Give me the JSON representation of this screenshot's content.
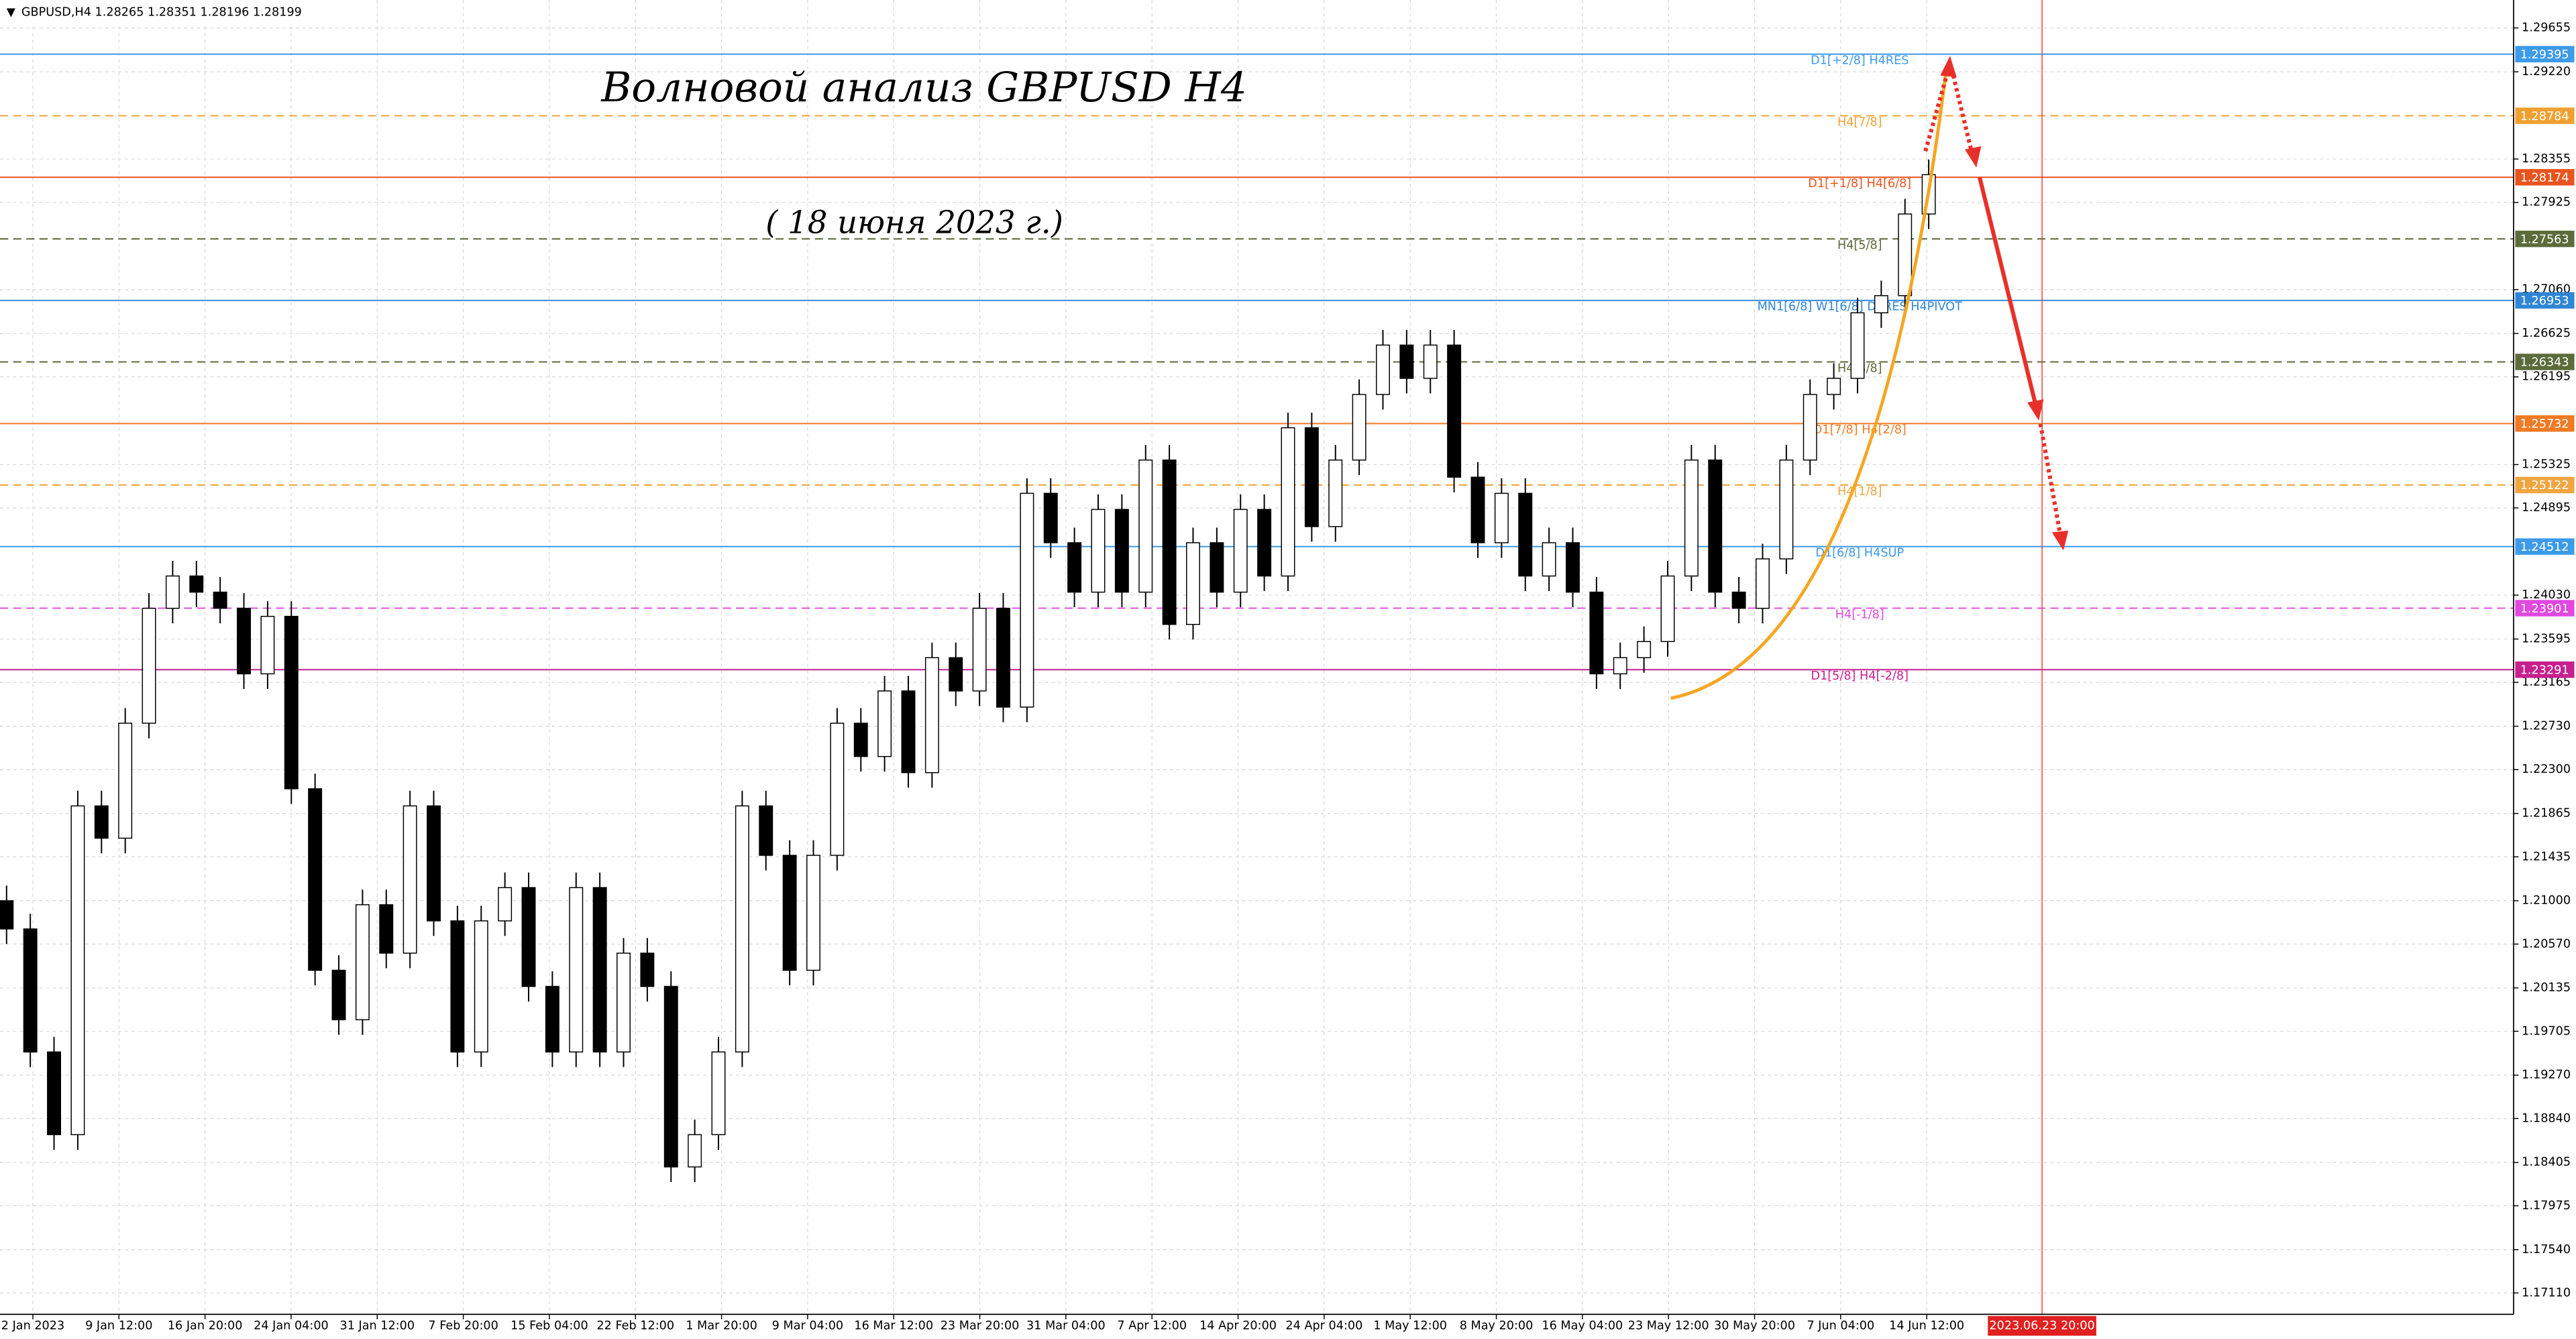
{
  "chart_data": {
    "type": "candlestick",
    "header": "GBPUSD,H4  1.28265 1.28351 1.28196 1.28199",
    "title": "Волновой анализ GBPUSD H4",
    "subtitle": "( 18 июня 2023 г.)",
    "open": [
      1.21,
      1.2072,
      1.195,
      1.1868,
      1.2194,
      1.2162,
      1.2276,
      1.239,
      1.2422,
      1.2406,
      1.239,
      1.2325,
      1.2382,
      1.2211,
      1.2031,
      1.1982,
      1.2096,
      1.2048,
      1.2194,
      1.208,
      1.195,
      1.208,
      1.2113,
      1.2015,
      1.195,
      1.2113,
      1.195,
      1.2048,
      1.2015,
      1.1836,
      1.1868,
      1.195,
      1.2194,
      1.2145,
      1.2031,
      1.2145,
      1.2276,
      1.2243,
      1.2308,
      1.2227,
      1.2341,
      1.2308,
      1.239,
      1.2292,
      1.2504,
      1.2455,
      1.2406,
      1.2488,
      1.2406,
      1.2537,
      1.2374,
      1.2455,
      1.2406,
      1.2488,
      1.2422,
      1.2569,
      1.2471,
      1.2537,
      1.2602,
      1.2651,
      1.2618,
      1.2651,
      1.252,
      1.2455,
      1.2504,
      1.2422,
      1.2455,
      1.2406,
      1.2325,
      1.2341,
      1.2357,
      1.2422,
      1.2537,
      1.2406,
      1.239,
      1.2439,
      1.2537,
      1.2602,
      1.2618,
      1.2683,
      1.27,
      1.2781
    ],
    "high": [
      1.2115,
      1.2087,
      1.1965,
      1.2209,
      1.2209,
      1.2291,
      1.2405,
      1.2437,
      1.2437,
      1.2421,
      1.2405,
      1.2397,
      1.2397,
      1.2226,
      1.2046,
      1.2111,
      1.2111,
      1.2209,
      1.2209,
      1.2095,
      1.2095,
      1.2128,
      1.2128,
      1.203,
      1.2128,
      1.2128,
      1.2063,
      1.2063,
      1.203,
      1.1883,
      1.1965,
      1.2209,
      1.2209,
      1.216,
      1.216,
      1.2291,
      1.2291,
      1.2323,
      1.2323,
      1.2356,
      1.2356,
      1.2405,
      1.2405,
      1.2519,
      1.2519,
      1.247,
      1.2503,
      1.2503,
      1.2552,
      1.2552,
      1.247,
      1.247,
      1.2503,
      1.2503,
      1.2584,
      1.2584,
      1.2552,
      1.2617,
      1.2666,
      1.2666,
      1.2666,
      1.2666,
      1.2535,
      1.2519,
      1.2519,
      1.247,
      1.247,
      1.2421,
      1.2356,
      1.2372,
      1.2437,
      1.2552,
      1.2552,
      1.2421,
      1.2454,
      1.2552,
      1.2617,
      1.2633,
      1.2698,
      1.2715,
      1.2796,
      1.2835
    ],
    "low": [
      1.2057,
      1.1935,
      1.1853,
      1.1853,
      1.2147,
      1.2147,
      1.2261,
      1.2375,
      1.2391,
      1.2375,
      1.231,
      1.231,
      1.2196,
      1.2016,
      1.1967,
      1.1967,
      1.2033,
      1.2033,
      1.2065,
      1.1935,
      1.1935,
      1.2065,
      1.2,
      1.1935,
      1.1935,
      1.1935,
      1.1935,
      1.2,
      1.1821,
      1.1821,
      1.1853,
      1.1935,
      1.213,
      1.2016,
      1.2016,
      1.213,
      1.2228,
      1.2228,
      1.2212,
      1.2212,
      1.2293,
      1.2293,
      1.2277,
      1.2277,
      1.244,
      1.2391,
      1.2391,
      1.2391,
      1.2391,
      1.2359,
      1.2359,
      1.2391,
      1.2391,
      1.2407,
      1.2407,
      1.2456,
      1.2456,
      1.2522,
      1.2587,
      1.2603,
      1.2603,
      1.2505,
      1.244,
      1.244,
      1.2407,
      1.2407,
      1.2391,
      1.231,
      1.231,
      1.2326,
      1.2342,
      1.2407,
      1.2391,
      1.2375,
      1.2375,
      1.2424,
      1.2522,
      1.2587,
      1.2603,
      1.2668,
      1.2685,
      1.2766
    ],
    "close": [
      1.2072,
      1.195,
      1.1868,
      1.2194,
      1.2162,
      1.2276,
      1.239,
      1.2422,
      1.2406,
      1.239,
      1.2325,
      1.2382,
      1.2211,
      1.2031,
      1.1982,
      1.2096,
      1.2048,
      1.2194,
      1.208,
      1.195,
      1.208,
      1.2113,
      1.2015,
      1.195,
      1.2113,
      1.195,
      1.2048,
      1.2015,
      1.1836,
      1.1868,
      1.195,
      1.2194,
      1.2145,
      1.2031,
      1.2145,
      1.2276,
      1.2243,
      1.2308,
      1.2227,
      1.2341,
      1.2308,
      1.239,
      1.2292,
      1.2504,
      1.2455,
      1.2406,
      1.2488,
      1.2406,
      1.2537,
      1.2374,
      1.2455,
      1.2406,
      1.2488,
      1.2422,
      1.2569,
      1.2471,
      1.2537,
      1.2602,
      1.2651,
      1.2618,
      1.2651,
      1.252,
      1.2455,
      1.2504,
      1.2422,
      1.2455,
      1.2406,
      1.2325,
      1.2341,
      1.2357,
      1.2422,
      1.2537,
      1.2406,
      1.239,
      1.2439,
      1.2537,
      1.2602,
      1.2618,
      1.2683,
      1.27,
      1.2781,
      1.282
    ],
    "x_axis_labels": [
      "2 Jan 2023",
      "9 Jan 12:00",
      "16 Jan 20:00",
      "24 Jan 04:00",
      "31 Jan 12:00",
      "7 Feb 20:00",
      "15 Feb 04:00",
      "22 Feb 12:00",
      "1 Mar 20:00",
      "9 Mar 04:00",
      "16 Mar 12:00",
      "23 Mar 20:00",
      "31 Mar 04:00",
      "7 Apr 12:00",
      "14 Apr 20:00",
      "24 Apr 04:00",
      "1 May 12:00",
      "8 May 20:00",
      "16 May 04:00",
      "23 May 12:00",
      "30 May 20:00",
      "7 Jun 04:00",
      "14 Jun 12:00"
    ],
    "cursor_label": "2023.06.23 20:00",
    "ylim": [
      1.16898,
      1.29932
    ],
    "yticks": [
      1.29655,
      {
        "value": 1.2922,
        "label": "1.29220"
      },
      1.28355,
      1.27925,
      {
        "value": 1.2706,
        "label": "1.27060"
      },
      1.26625,
      1.26195,
      1.25325,
      1.24895,
      {
        "value": 1.2403,
        "label": "1.24030"
      },
      1.23595,
      1.23165,
      {
        "value": 1.2273,
        "label": "1.22730"
      },
      {
        "value": 1.223,
        "label": "1.22300"
      },
      1.21865,
      1.21435,
      {
        "value": 1.21,
        "label": "1.21000"
      },
      {
        "value": 1.2057,
        "label": "1.20570"
      },
      1.20135,
      1.19705,
      {
        "value": 1.1927,
        "label": "1.19270"
      },
      {
        "value": 1.1884,
        "label": "1.18840"
      },
      1.18405,
      1.17975,
      {
        "value": 1.1754,
        "label": "1.17540"
      },
      {
        "value": 1.1711,
        "label": "1.17110"
      }
    ],
    "grid": true,
    "bull_color": "#ffffff",
    "bear_color": "#000000",
    "levels": [
      {
        "price": 1.29395,
        "label": "D1[+2/8] H4RES",
        "color": "#3d9be9",
        "dashed": false
      },
      {
        "price": 1.28784,
        "label": "H4[7/8]",
        "color": "#f0a030",
        "dashed": true
      },
      {
        "price": 1.28174,
        "label": "D1[+1/8] H4[6/8]",
        "color": "#e8541e",
        "dashed": false
      },
      {
        "price": 1.27563,
        "label": "H4[5/8]",
        "color": "#5b6b3a",
        "dashed": true
      },
      {
        "price": 1.26953,
        "label": "MN1[6/8] W1[6/8] D1RES H4PIVOT",
        "color": "#2f86d6",
        "dashed": false
      },
      {
        "price": 1.26343,
        "label": "H4[3/8]",
        "color": "#5b6b3a",
        "dashed": true
      },
      {
        "price": 1.25732,
        "label": "D1[7/8] H4[2/8]",
        "color": "#f07a25",
        "dashed": false
      },
      {
        "price": 1.25122,
        "label": "H4[1/8]",
        "color": "#f0a540",
        "dashed": true
      },
      {
        "price": 1.24512,
        "label": "D1[6/8] H4SUP",
        "color": "#3d9be9",
        "dashed": false
      },
      {
        "price": 1.23901,
        "label": "H4[-1/8]",
        "color": "#e048e0",
        "dashed": true
      },
      {
        "price": 1.23291,
        "label": "D1[5/8] H4[-2/8]",
        "color": "#c8208f",
        "dashed": false
      }
    ]
  }
}
